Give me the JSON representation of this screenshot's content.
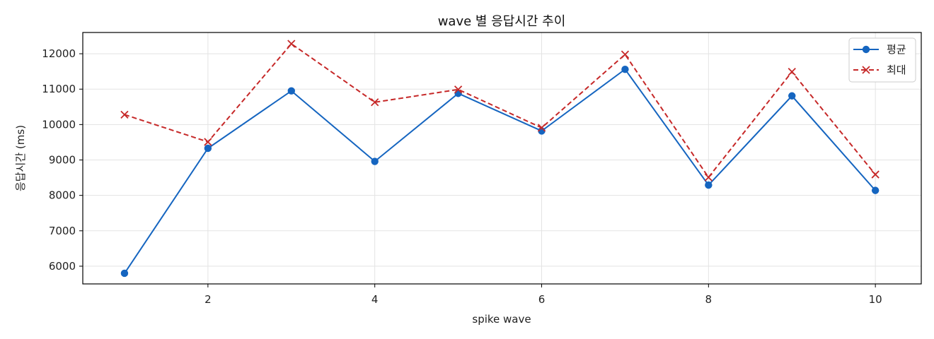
{
  "chart_data": {
    "type": "line",
    "title": "wave 별 응답시간 추이",
    "xlabel": "spike wave",
    "ylabel": "응답시간 (ms)",
    "x": [
      1,
      2,
      3,
      4,
      5,
      6,
      7,
      8,
      9,
      10
    ],
    "xlim": [
      0.5,
      10.55
    ],
    "ylim": [
      5500,
      12600
    ],
    "xticks": [
      2,
      4,
      6,
      8,
      10
    ],
    "yticks": [
      6000,
      7000,
      8000,
      9000,
      10000,
      11000,
      12000
    ],
    "grid": true,
    "legend_position": "top-right",
    "series": [
      {
        "name": "평균",
        "color": "#1565c0",
        "marker": "circle",
        "line_style": "solid",
        "values": [
          5800,
          9330,
          10950,
          8960,
          10880,
          9820,
          11560,
          8290,
          10810,
          8140
        ]
      },
      {
        "name": "최대",
        "color": "#c62828",
        "marker": "x",
        "line_style": "dashed",
        "values": [
          10280,
          9510,
          12280,
          10630,
          10990,
          9910,
          11980,
          8510,
          11490,
          8590
        ]
      }
    ]
  }
}
